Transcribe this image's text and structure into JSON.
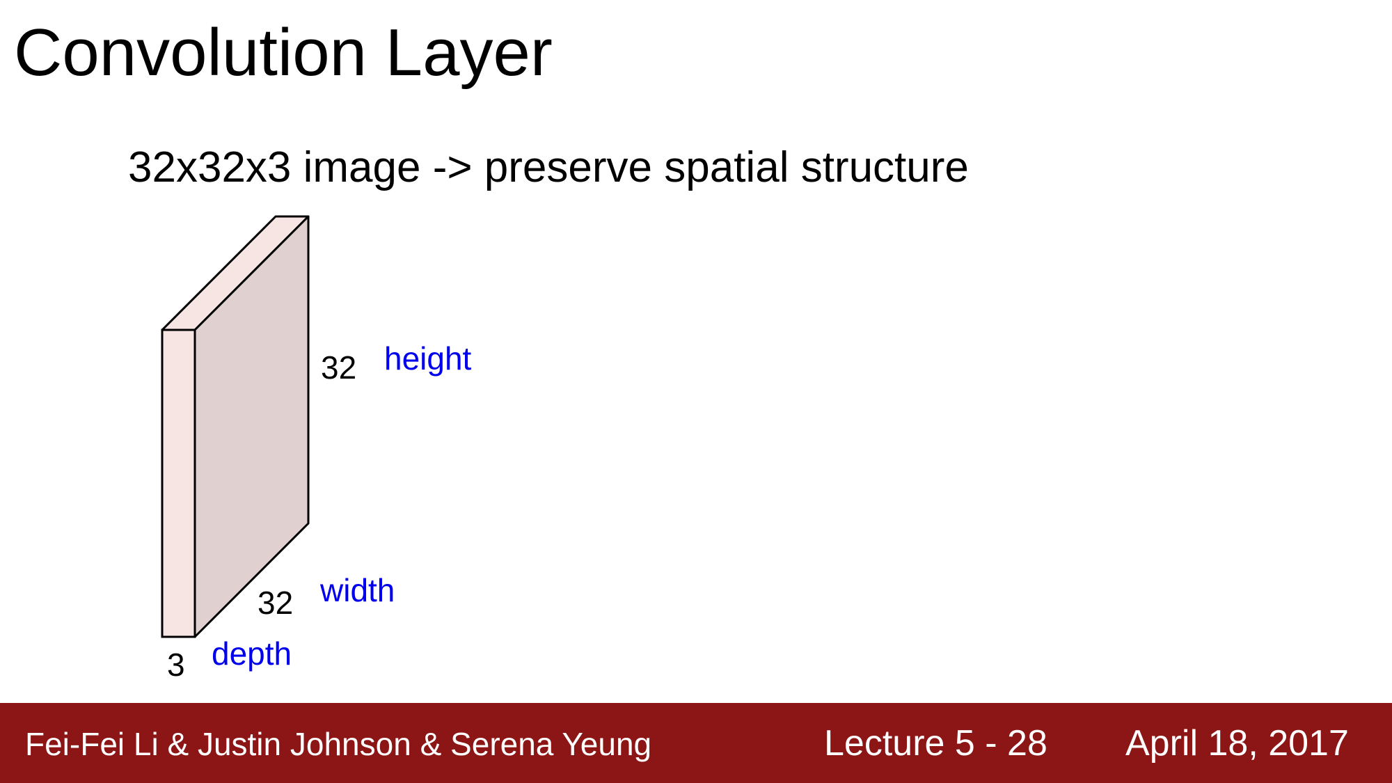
{
  "slide": {
    "title": "Convolution Layer",
    "subtitle": "32x32x3 image -> preserve spatial structure"
  },
  "diagram": {
    "height_value": "32",
    "height_label": "height",
    "width_value": "32",
    "width_label": "width",
    "depth_value": "3",
    "depth_label": "depth",
    "colors": {
      "front_face": "#f7e5e3",
      "side_face": "#e0d0cf",
      "top_face": "#f7e5e3",
      "outline": "#000000",
      "label_blue": "#0000ee"
    }
  },
  "footer": {
    "authors": "Fei-Fei Li & Justin Johnson & Serena Yeung",
    "lecture": "Lecture 5 -",
    "page": "28",
    "date": "April 18, 2017",
    "background": "#8c1515"
  }
}
